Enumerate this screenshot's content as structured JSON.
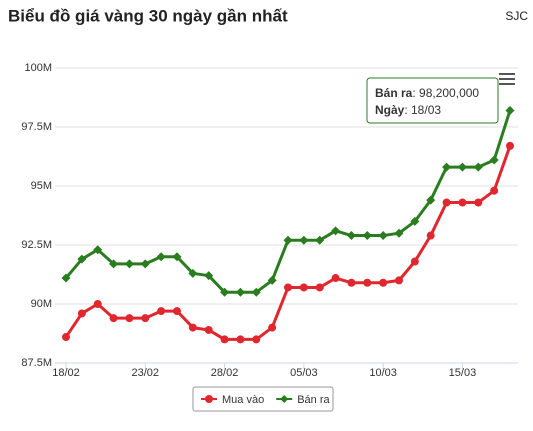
{
  "chart_data": {
    "type": "line",
    "title": "Biểu đồ giá vàng 30 ngày gần nhất",
    "source": "SJC",
    "categories": [
      "18/02",
      null,
      null,
      null,
      null,
      "23/02",
      null,
      null,
      null,
      null,
      "28/02",
      null,
      null,
      null,
      null,
      "05/03",
      null,
      null,
      null,
      null,
      "10/03",
      null,
      null,
      null,
      null,
      "15/03",
      null,
      null,
      null
    ],
    "series": [
      {
        "name": "Mua vào",
        "color": "#e0262f",
        "marker": "circle",
        "values": [
          88600000,
          89600000,
          90000000,
          89400000,
          89400000,
          89400000,
          89700000,
          89700000,
          89000000,
          88900000,
          88500000,
          88500000,
          88500000,
          89000000,
          90700000,
          90700000,
          90700000,
          91100000,
          90900000,
          90900000,
          90900000,
          91000000,
          91800000,
          92900000,
          94300000,
          94300000,
          94300000,
          94800000,
          96700000
        ]
      },
      {
        "name": "Bán ra",
        "color": "#2a7d1f",
        "marker": "diamond",
        "values": [
          91100000,
          91900000,
          92300000,
          91700000,
          91700000,
          91700000,
          92000000,
          92000000,
          91300000,
          91200000,
          90500000,
          90500000,
          90500000,
          91000000,
          92700000,
          92700000,
          92700000,
          93100000,
          92900000,
          92900000,
          92900000,
          93000000,
          93500000,
          94400000,
          95800000,
          95800000,
          95800000,
          96100000,
          98200000
        ]
      }
    ],
    "ylim": [
      87500000,
      100000000
    ],
    "yticks": [
      {
        "value": 87500000,
        "label": "87.5M"
      },
      {
        "value": 90000000,
        "label": "90M"
      },
      {
        "value": 92500000,
        "label": "92.5M"
      },
      {
        "value": 95000000,
        "label": "95M"
      },
      {
        "value": 97500000,
        "label": "97.5M"
      },
      {
        "value": 100000000,
        "label": "100M"
      }
    ],
    "grid": true,
    "legend": "bottom",
    "tooltip": {
      "runs": [
        [
          "Bán ra",
          ": 98,200,000"
        ],
        [
          "Ngày",
          ": 18/03"
        ]
      ],
      "color": "#2a7d1f"
    }
  }
}
